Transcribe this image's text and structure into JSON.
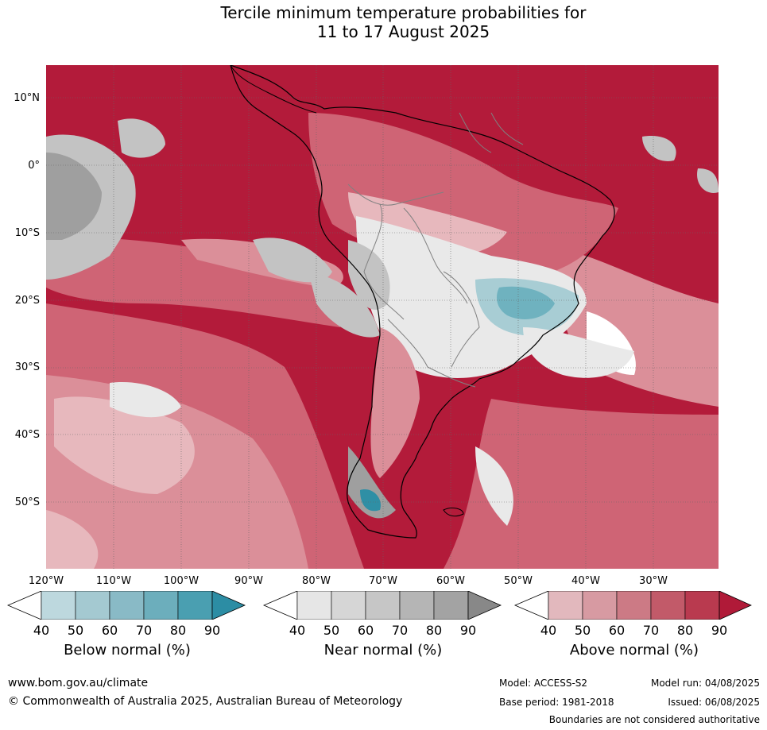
{
  "title": {
    "line1": "Tercile minimum temperature probabilities for",
    "line2": "11 to 17 August 2025"
  },
  "map": {
    "lat_labels": [
      "10°N",
      "0°",
      "10°S",
      "20°S",
      "30°S",
      "40°S",
      "50°S"
    ],
    "lon_labels": [
      "120°W",
      "110°W",
      "100°W",
      "90°W",
      "80°W",
      "70°W",
      "60°W",
      "50°W",
      "40°W",
      "30°W"
    ],
    "colors": {
      "above_90": "#b31b3a",
      "above_80": "#c53a53",
      "above_70": "#cf6475",
      "above_60": "#db8f99",
      "above_50": "#e7b8bd",
      "near_40": "#e9e9e9",
      "near_60": "#c3c3c3",
      "near_80": "#9f9f9f",
      "below_50": "#a8cdd4",
      "below_70": "#6fb2bf",
      "below_90": "#2f8fa5",
      "land_line": "#000000",
      "border_line": "#808080"
    }
  },
  "colorbars": [
    {
      "label": "Below normal (%)",
      "ticks": [
        "40",
        "50",
        "60",
        "70",
        "80",
        "90"
      ],
      "colors": [
        "#bdd8de",
        "#a4c9d1",
        "#89bac6",
        "#6caebc",
        "#4a9fb1",
        "#2c8da4"
      ]
    },
    {
      "label": "Near normal (%)",
      "ticks": [
        "40",
        "50",
        "60",
        "70",
        "80",
        "90"
      ],
      "colors": [
        "#e6e6e6",
        "#d6d6d6",
        "#c6c6c6",
        "#b5b5b5",
        "#a3a3a3",
        "#888888"
      ]
    },
    {
      "label": "Above normal (%)",
      "ticks": [
        "40",
        "50",
        "60",
        "70",
        "80",
        "90"
      ],
      "colors": [
        "#e2b8bd",
        "#d79aa2",
        "#cc7a85",
        "#c25a69",
        "#b93a4f",
        "#b01a38"
      ]
    }
  ],
  "footer": {
    "url": "www.bom.gov.au/climate",
    "copyright": "© Commonwealth of Australia 2025, Australian Bureau of Meteorology",
    "model": "Model: ACCESS-S2",
    "model_run": "Model run: 04/08/2025",
    "base_period": "Base period: 1981-2018",
    "issued": "Issued: 06/08/2025",
    "disclaimer": "Boundaries are not considered authoritative"
  }
}
